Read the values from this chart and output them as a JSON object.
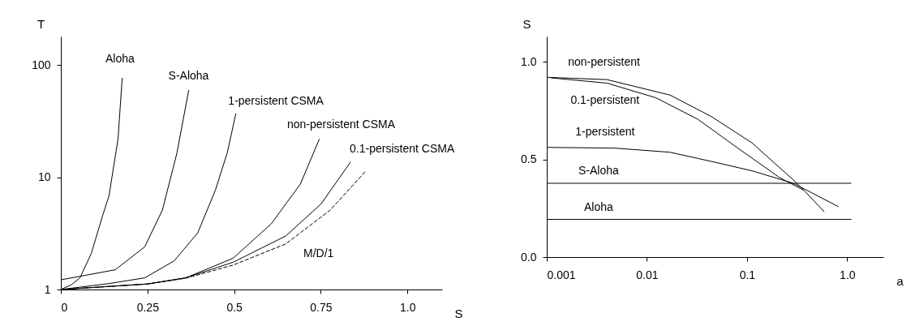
{
  "chart_data": [
    {
      "type": "line",
      "xlabel": "S",
      "ylabel": "T",
      "log": "y",
      "xlim": [
        0,
        1.1
      ],
      "ylim": [
        1,
        180
      ],
      "xticks": [
        0,
        0.25,
        0.5,
        0.75,
        {
          "value": 1,
          "label": "1.0"
        }
      ],
      "yticks": [
        1,
        10,
        100
      ],
      "series": [
        {
          "color": "#000000",
          "x": [
            0,
            0.03,
            0.055,
            0.088,
            0.12,
            0.139,
            0.165,
            0.177
          ],
          "values": [
            1,
            1.1,
            1.27,
            2.1,
            4.5,
            6.85,
            22,
            77
          ]
        },
        {
          "color": "#000000",
          "x": [
            0,
            0.055,
            0.157,
            0.242,
            0.293,
            0.335,
            0.369
          ],
          "values": [
            1.22,
            1.31,
            1.5,
            2.4,
            5.1,
            16.5,
            60
          ]
        },
        {
          "color": "#000000",
          "x": [
            0,
            0.139,
            0.242,
            0.327,
            0.395,
            0.446,
            0.48,
            0.505
          ],
          "values": [
            1,
            1.13,
            1.27,
            1.8,
            3.2,
            7.7,
            16.5,
            37
          ]
        },
        {
          "color": "#000000",
          "x": [
            0,
            0.25,
            0.36,
            0.497,
            0.607,
            0.691,
            0.746
          ],
          "values": [
            1,
            1.12,
            1.27,
            1.9,
            3.85,
            8.7,
            22
          ]
        },
        {
          "color": "#000000",
          "x": [
            0,
            0.25,
            0.36,
            0.497,
            0.649,
            0.751,
            0.836
          ],
          "values": [
            1,
            1.12,
            1.27,
            1.75,
            3,
            5.8,
            13.7
          ]
        },
        {
          "color": "#000000",
          "line_style": "dashed",
          "x": [
            0,
            0.25,
            0.36,
            0.497,
            0.649,
            0.777,
            0.879
          ],
          "values": [
            1,
            1.12,
            1.26,
            1.65,
            2.55,
            5.1,
            11.3
          ]
        }
      ],
      "annotations": [
        "Aloha",
        "S-Aloha",
        "1-persistent CSMA",
        "non-persistent CSMA",
        "0.1-persistent CSMA",
        "M/D/1"
      ]
    },
    {
      "type": "line",
      "xlabel": "a",
      "ylabel": "S",
      "log": "x",
      "xlim": [
        0.001,
        2.3
      ],
      "ylim": [
        0,
        1.13
      ],
      "xticks": [
        0.001,
        0.01,
        0.1,
        {
          "value": 1,
          "label": "1.0"
        }
      ],
      "yticks": [
        {
          "value": 0,
          "label": "0.0"
        },
        0.5,
        {
          "value": 1,
          "label": "1.0"
        }
      ],
      "series": [
        {
          "color": "#000000",
          "x": [
            0.001,
            0.004,
            0.017,
            0.044,
            0.112,
            0.29,
            0.37,
            0.59
          ],
          "values": [
            0.921,
            0.909,
            0.83,
            0.72,
            0.585,
            0.395,
            0.342,
            0.232
          ]
        },
        {
          "color": "#000000",
          "x": [
            0.0011,
            0.004,
            0.0123,
            0.032,
            0.081,
            0.21,
            0.37
          ],
          "values": [
            0.918,
            0.891,
            0.816,
            0.707,
            0.558,
            0.408,
            0.342
          ]
        },
        {
          "color": "#000000",
          "x": [
            0.001,
            0.0048,
            0.017,
            0.044,
            0.112,
            0.29,
            0.82
          ],
          "values": [
            0.562,
            0.558,
            0.537,
            0.49,
            0.442,
            0.378,
            0.258
          ]
        },
        {
          "color": "#000000",
          "x": [
            0.001,
            1.1
          ],
          "values": [
            0.378,
            0.378
          ]
        },
        {
          "color": "#000000",
          "x": [
            0.001,
            1.1
          ],
          "values": [
            0.193,
            0.193
          ]
        }
      ],
      "annotations": [
        "non-persistent",
        "0.1-persistent",
        "1-persistent",
        "S-Aloha",
        "Aloha"
      ]
    }
  ]
}
